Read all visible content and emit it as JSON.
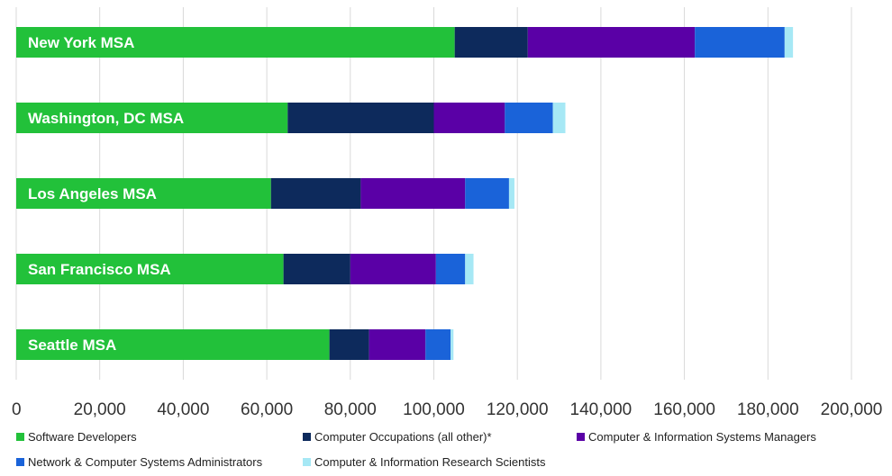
{
  "chart_data": {
    "type": "bar",
    "orientation": "horizontal",
    "stacked": true,
    "categories": [
      "New York MSA",
      "Washington, DC MSA",
      "Los Angeles MSA",
      "San Francisco MSA",
      "Seattle MSA"
    ],
    "series": [
      {
        "name": "Software Developers",
        "color": "#22c13a",
        "values": [
          105000,
          65000,
          61000,
          64000,
          75000
        ]
      },
      {
        "name": "Computer Occupations (all other)*",
        "color": "#0d2a5c",
        "values": [
          17500,
          35000,
          21500,
          16000,
          9500
        ]
      },
      {
        "name": "Computer & Information Systems Managers",
        "color": "#5a00a6",
        "values": [
          40000,
          17000,
          25000,
          20500,
          13500
        ]
      },
      {
        "name": "Network & Computer Systems Administrators",
        "color": "#1a63d9",
        "values": [
          21500,
          11500,
          10500,
          7000,
          6000
        ]
      },
      {
        "name": "Computer & Information Research Scientists",
        "color": "#a6e8f5",
        "values": [
          2000,
          3000,
          1300,
          2000,
          700
        ]
      }
    ],
    "xlim": [
      0,
      200000
    ],
    "xticks": [
      "0",
      "20,000",
      "40,000",
      "60,000",
      "80,000",
      "100,000",
      "120,000",
      "140,000",
      "160,000",
      "180,000",
      "200,000"
    ],
    "grid": true,
    "legend_position": "bottom"
  }
}
